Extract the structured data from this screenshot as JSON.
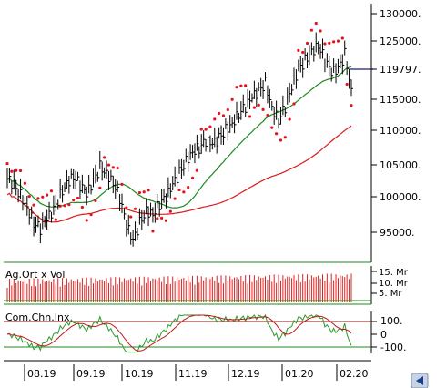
{
  "price_axis_ticks": [
    "130000.",
    "125000.",
    "119797.",
    "115000.",
    "110000.",
    "105000.",
    "100000.",
    "95000."
  ],
  "current_price_label": "119797.",
  "volume_panel": {
    "label": "Ag.Ort x Vol",
    "ticks": [
      "15. Mr",
      "10. Mr",
      "5. Mr"
    ]
  },
  "indicator_panel": {
    "label": "Com.Chn.Inx",
    "ticks": [
      "100.",
      "0",
      "-100."
    ]
  },
  "x_axis_labels": [
    "08.19",
    "09.19",
    "10.19",
    "11.19",
    "12.19",
    "01.20",
    "02.20"
  ],
  "colors": {
    "price_bars": "#000000",
    "sar_dots": "#e8101a",
    "ma_short": "#1f8a1f",
    "ma_long": "#d81a1a",
    "volume_bars": "#e02020",
    "volume_avg": "#1f8a1f",
    "cci_line": "#2a9a2a",
    "cci_signal": "#c01818",
    "level_line": "#1f8a1f",
    "price_marker": "#1a1a7a"
  },
  "chart_data": {
    "type": "bar",
    "x": [
      "08.19",
      "09.19",
      "10.19",
      "11.19",
      "12.19",
      "01.20",
      "02.20"
    ],
    "price_ylim": [
      92000,
      131000
    ],
    "last_price": 119797,
    "close_series": [
      103500,
      102500,
      101000,
      99000,
      96500,
      95500,
      97000,
      98500,
      101000,
      103000,
      104000,
      102500,
      101000,
      103000,
      105500,
      104500,
      103000,
      100500,
      96000,
      93500,
      96500,
      98500,
      98000,
      99500,
      100500,
      102500,
      104500,
      106500,
      108000,
      108500,
      109500,
      109000,
      110000,
      111500,
      112500,
      114000,
      115000,
      116500,
      117500,
      119000,
      115000,
      113000,
      115000,
      118000,
      121000,
      122500,
      124000,
      125000,
      122500,
      120500,
      121000,
      123500,
      118000
    ],
    "volume_ylim": [
      0,
      17
    ],
    "cci_ylim": [
      -150,
      160
    ]
  }
}
